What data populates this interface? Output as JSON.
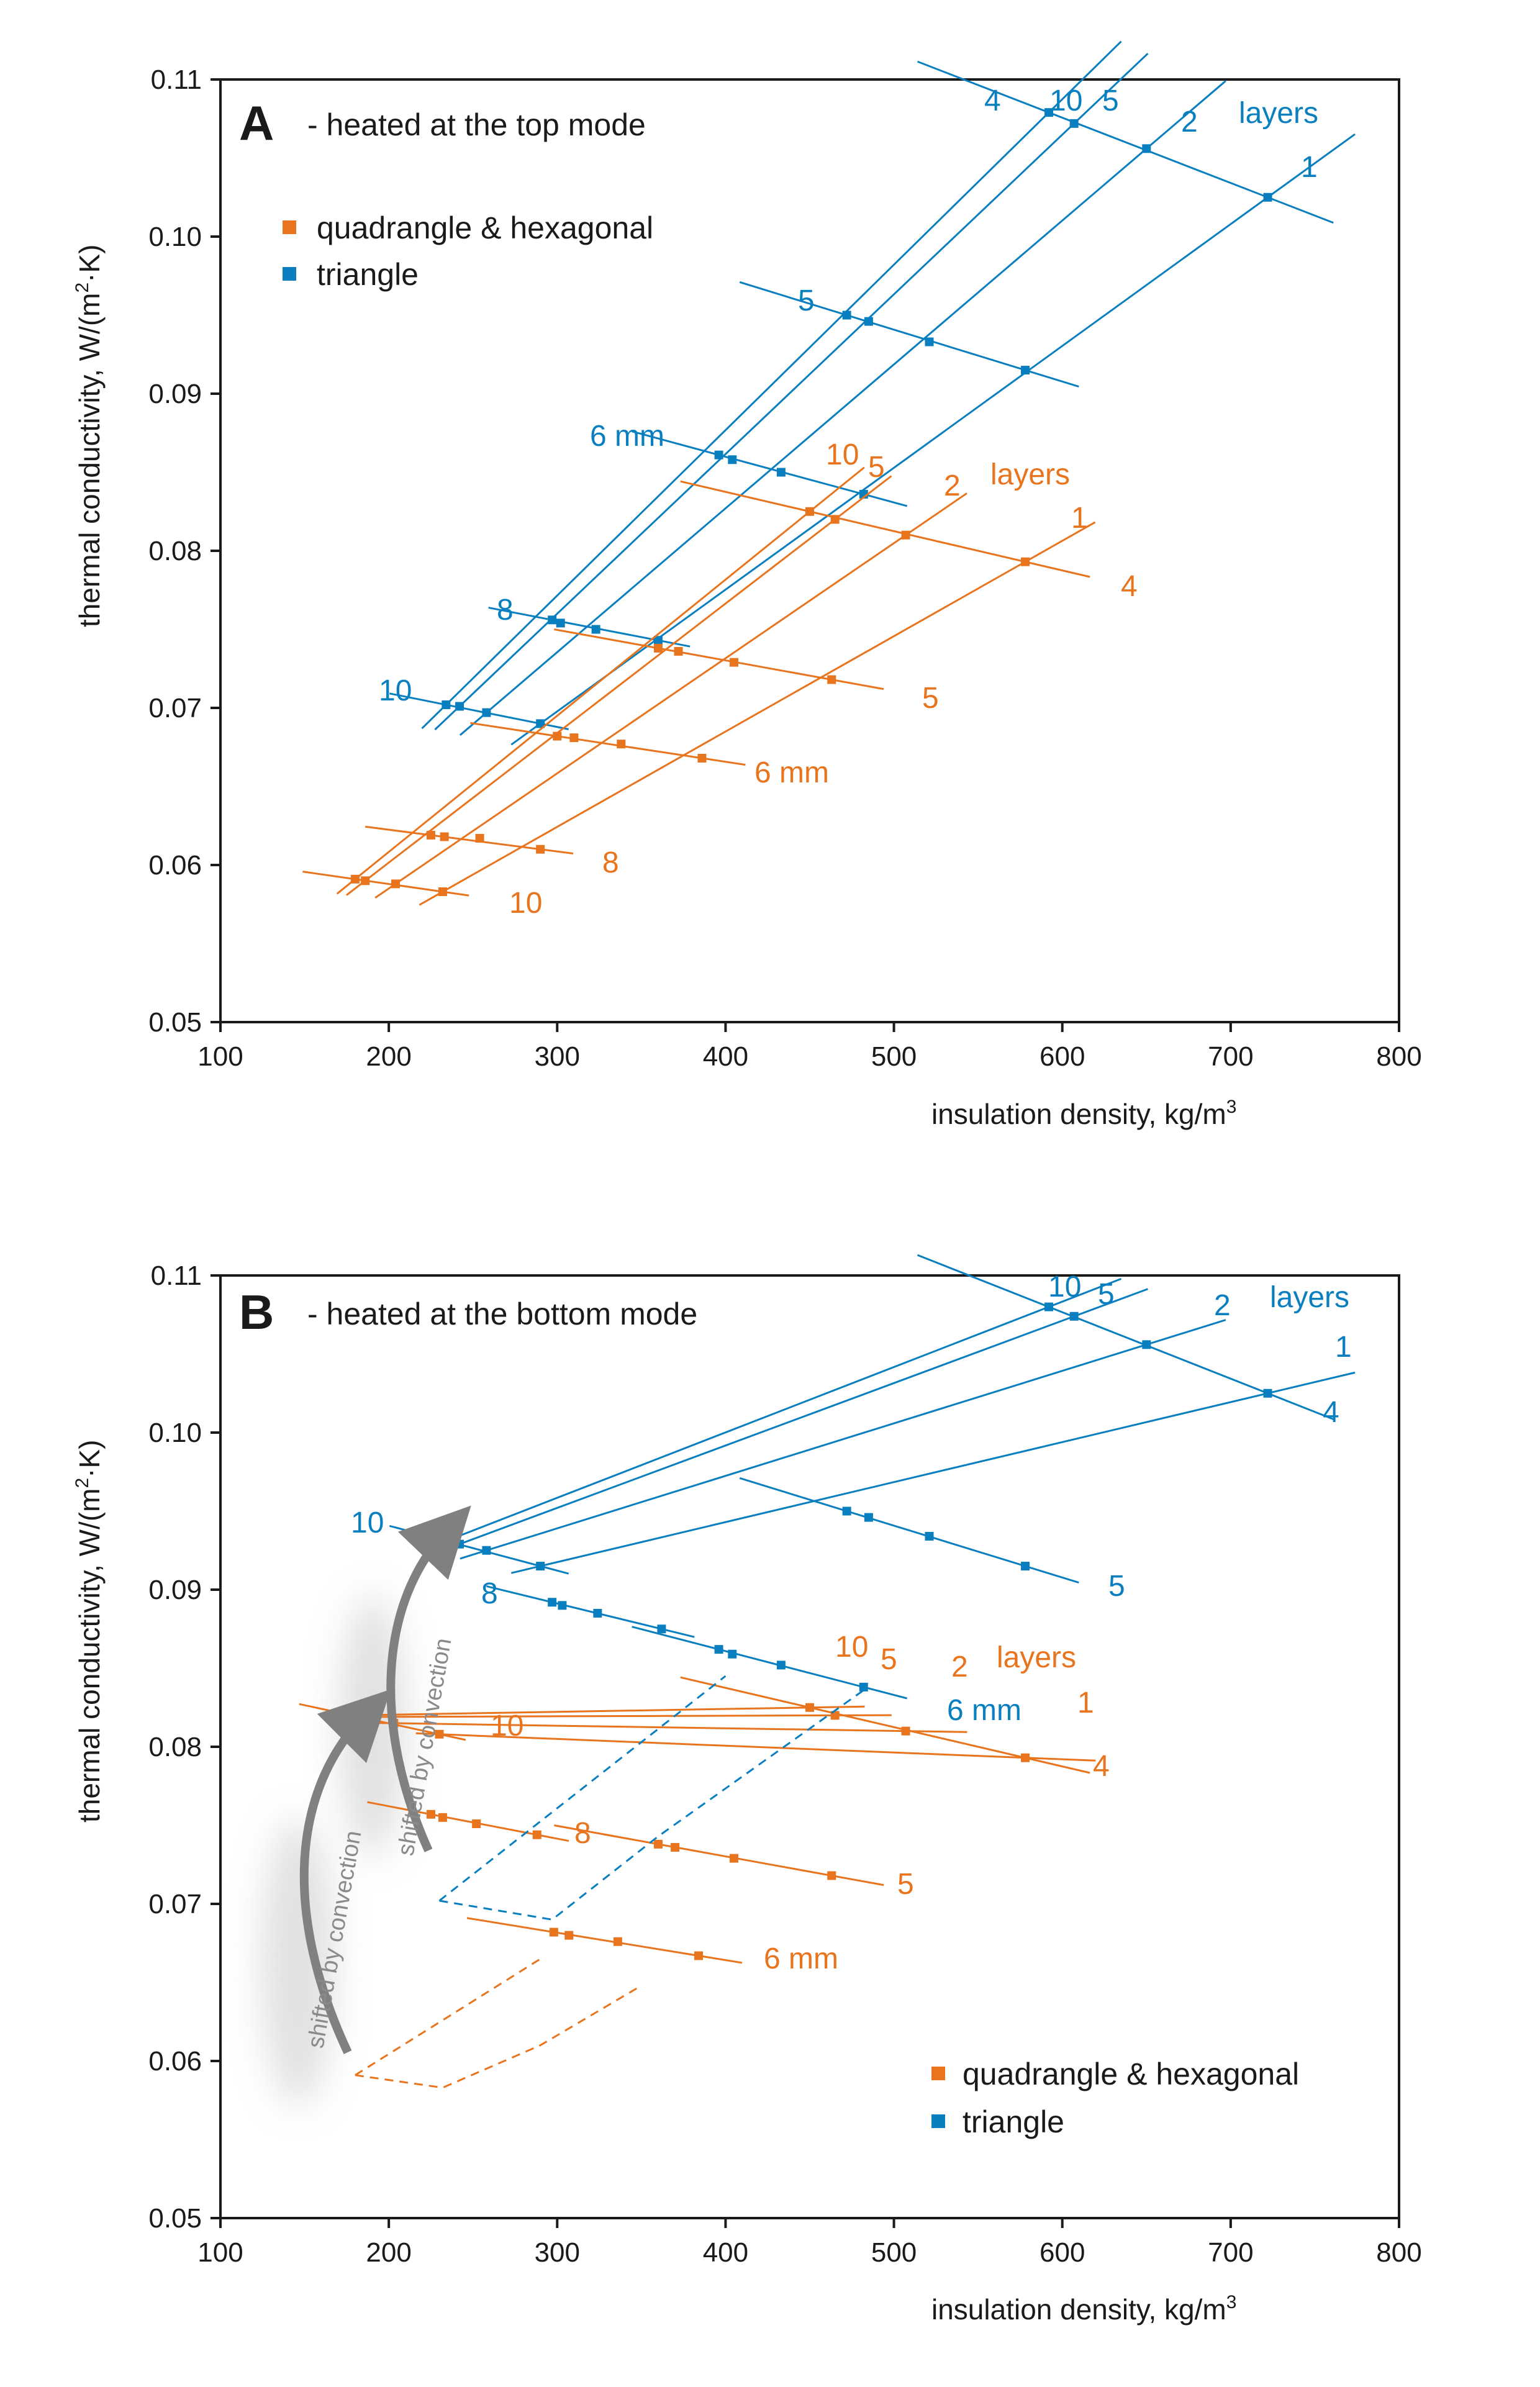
{
  "colors": {
    "orange": "#e8741e",
    "blue": "#0a7fc0",
    "axis": "#1a1a1a",
    "arrow": "#808080"
  },
  "chart_data": [
    {
      "type": "line",
      "panel": "A",
      "title": "A",
      "subtitle": "- heated at the top mode",
      "xlabel": "insulation density, kg/m",
      "xlabel_sup": "3",
      "ylabel": "thermal conductivity, W/(m",
      "ylabel_sup": "2",
      "ylabel_end": "·K)",
      "xlim": [
        100,
        800
      ],
      "ylim": [
        0.05,
        0.11
      ],
      "xticks": [
        "100",
        "200",
        "300",
        "400",
        "500",
        "600",
        "700",
        "800"
      ],
      "yticks": [
        "0.05",
        "0.06",
        "0.07",
        "0.08",
        "0.09",
        "0.10",
        "0.11"
      ],
      "legend": [
        {
          "label": "quadrangle & hexagonal",
          "color": "orange"
        },
        {
          "label": "triangle",
          "color": "blue"
        }
      ],
      "series": [
        {
          "name": "triangle",
          "color": "blue",
          "layers": [
            "1",
            "2",
            "5",
            "10",
            "4"
          ],
          "points": [
            [
              [
                722,
                0.1025
              ],
              [
                578,
                0.0915
              ],
              [
                482,
                0.0836
              ],
              [
                360,
                0.0743
              ],
              [
                290,
                0.069
              ]
            ],
            [
              [
                650,
                0.1056
              ],
              [
                521,
                0.0933
              ],
              [
                433,
                0.085
              ],
              [
                323,
                0.075
              ],
              [
                258,
                0.0697
              ]
            ],
            [
              [
                607,
                0.1072
              ],
              [
                485,
                0.0946
              ],
              [
                404,
                0.0858
              ],
              [
                302,
                0.0754
              ],
              [
                242,
                0.0701
              ]
            ],
            [
              [
                592,
                0.1079
              ],
              [
                472,
                0.095
              ],
              [
                396,
                0.0861
              ],
              [
                297,
                0.0756
              ],
              [
                234,
                0.0702
              ]
            ]
          ],
          "labels": {
            "layers": [
              "1",
              "2",
              "5",
              "10",
              "4"
            ],
            "layers_title": "layers",
            "thickness": [
              "5",
              "6 mm",
              "8",
              "10"
            ]
          }
        },
        {
          "name": "quadrangle & hexagonal",
          "color": "orange",
          "layers": [
            "1",
            "2",
            "5",
            "10",
            "4"
          ],
          "points": [
            [
              [
                578,
                0.0793
              ],
              [
                463,
                0.0718
              ],
              [
                386,
                0.0668
              ],
              [
                290,
                0.061
              ],
              [
                232,
                0.0583
              ]
            ],
            [
              [
                507,
                0.081
              ],
              [
                405,
                0.0729
              ],
              [
                338,
                0.0677
              ],
              [
                254,
                0.0617
              ],
              [
                204,
                0.0588
              ]
            ],
            [
              [
                465,
                0.082
              ],
              [
                372,
                0.0736
              ],
              [
                310,
                0.0681
              ],
              [
                233,
                0.0618
              ],
              [
                186,
                0.059
              ]
            ],
            [
              [
                450,
                0.0825
              ],
              [
                360,
                0.0738
              ],
              [
                300,
                0.0682
              ],
              [
                225,
                0.0619
              ],
              [
                180,
                0.0591
              ]
            ]
          ],
          "labels": {
            "layers": [
              "1",
              "2",
              "5",
              "10",
              "4"
            ],
            "layers_title": "layers",
            "thickness": [
              "5",
              "6 mm",
              "8",
              "10"
            ]
          }
        }
      ]
    },
    {
      "type": "line",
      "panel": "B",
      "title": "B",
      "subtitle": "- heated at the bottom mode",
      "xlabel": "insulation density, kg/m",
      "xlabel_sup": "3",
      "ylabel": "thermal conductivity, W/(m",
      "ylabel_sup": "2",
      "ylabel_end": "·K)",
      "xlim": [
        100,
        800
      ],
      "ylim": [
        0.05,
        0.11
      ],
      "xticks": [
        "100",
        "200",
        "300",
        "400",
        "500",
        "600",
        "700",
        "800"
      ],
      "yticks": [
        "0.05",
        "0.06",
        "0.07",
        "0.08",
        "0.09",
        "0.10",
        "0.11"
      ],
      "legend": [
        {
          "label": "quadrangle & hexagonal",
          "color": "orange"
        },
        {
          "label": "triangle",
          "color": "blue"
        }
      ],
      "annotations": [
        "shifted by convection",
        "shifted by convection"
      ],
      "series": [
        {
          "name": "triangle",
          "color": "blue",
          "points": [
            [
              [
                722,
                0.1025
              ],
              [
                578,
                0.0915
              ],
              [
                482,
                0.0838
              ],
              [
                362,
                0.0875
              ],
              [
                290,
                0.0915
              ]
            ],
            [
              [
                650,
                0.1056
              ],
              [
                521,
                0.0934
              ],
              [
                433,
                0.0852
              ],
              [
                324,
                0.0885
              ],
              [
                258,
                0.0925
              ]
            ],
            [
              [
                607,
                0.1074
              ],
              [
                485,
                0.0946
              ],
              [
                404,
                0.0859
              ],
              [
                303,
                0.089
              ],
              [
                242,
                0.0929
              ]
            ],
            [
              [
                592,
                0.108
              ],
              [
                472,
                0.095
              ],
              [
                396,
                0.0862
              ],
              [
                297,
                0.0892
              ],
              [
                234,
                0.0931
              ]
            ]
          ],
          "labels": {
            "layers": [
              "1",
              "2",
              "5",
              "10",
              "4"
            ],
            "layers_title": "layers",
            "thickness": [
              "5",
              "6 mm",
              "8",
              "10"
            ]
          }
        },
        {
          "name": "quadrangle & hexagonal",
          "color": "orange",
          "points": [
            [
              [
                578,
                0.0793
              ],
              [
                463,
                0.0718
              ],
              [
                384,
                0.0667
              ],
              [
                288,
                0.0744
              ],
              [
                230,
                0.0808
              ]
            ],
            [
              [
                507,
                0.081
              ],
              [
                405,
                0.0729
              ],
              [
                336,
                0.0676
              ],
              [
                252,
                0.0751
              ],
              [
                203,
                0.0815
              ]
            ],
            [
              [
                465,
                0.082
              ],
              [
                370,
                0.0736
              ],
              [
                307,
                0.068
              ],
              [
                232,
                0.0755
              ],
              [
                185,
                0.0819
              ]
            ],
            [
              [
                450,
                0.0825
              ],
              [
                360,
                0.0738
              ],
              [
                298,
                0.0682
              ],
              [
                225,
                0.0757
              ],
              [
                178,
                0.082
              ]
            ]
          ],
          "labels": {
            "layers": [
              "1",
              "2",
              "5",
              "10",
              "4"
            ],
            "layers_title": "layers",
            "thickness": [
              "5",
              "6 mm",
              "8",
              "10"
            ]
          }
        }
      ]
    }
  ]
}
